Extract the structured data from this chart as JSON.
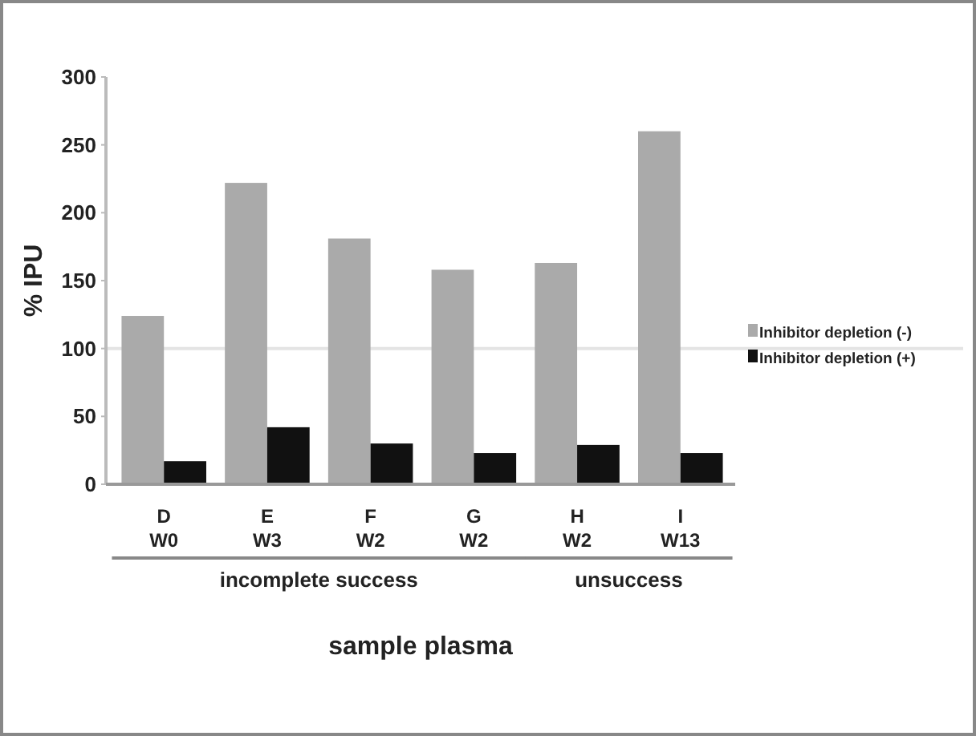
{
  "chart_data": {
    "type": "bar",
    "xlabel": "sample plasma",
    "ylabel": "% IPU",
    "categories": [
      "D\nW0",
      "E\nW3",
      "F\nW2",
      "G\nW2",
      "H\nW2",
      "I\nW13"
    ],
    "series": [
      {
        "name": "Inhibitor depletion (-)",
        "color": "#aaaaaa",
        "values": [
          124,
          222,
          181,
          158,
          163,
          260
        ]
      },
      {
        "name": "Inhibitor depletion (+)",
        "color": "#111111",
        "values": [
          17,
          42,
          30,
          23,
          29,
          23
        ]
      }
    ],
    "ylim": [
      0,
      300
    ],
    "yticks": [
      0,
      50,
      100,
      150,
      200,
      250,
      300
    ],
    "ref_lines": [
      {
        "axis": "y",
        "value": 100,
        "color": "#e4e4e4"
      }
    ],
    "annotations": [
      "incomplete success",
      "unsuccess"
    ],
    "legend": "right",
    "grid": false
  }
}
